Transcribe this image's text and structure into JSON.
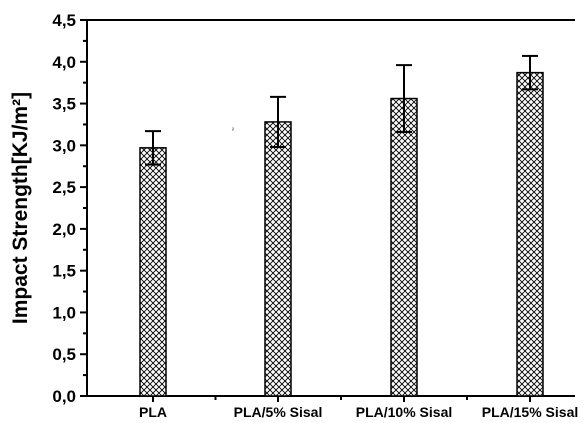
{
  "chart_data": {
    "type": "bar",
    "title": "",
    "xlabel": "",
    "ylabel": "Impact Strength[KJ/m²]",
    "ylim": [
      0,
      4.5
    ],
    "yticks": [
      "0,0",
      "0,5",
      "1,0",
      "1,5",
      "2,0",
      "2,5",
      "3,0",
      "3,5",
      "4,0",
      "4,5"
    ],
    "categories": [
      "PLA",
      "PLA/5% Sisal",
      "PLA/10% Sisal",
      "PLA/15% Sisal"
    ],
    "values": [
      2.97,
      3.28,
      3.56,
      3.87
    ],
    "errors": [
      0.2,
      0.3,
      0.4,
      0.2
    ],
    "grid": false,
    "legend": "none",
    "bar_pattern": "crosshatch",
    "stray_mark": "²"
  }
}
